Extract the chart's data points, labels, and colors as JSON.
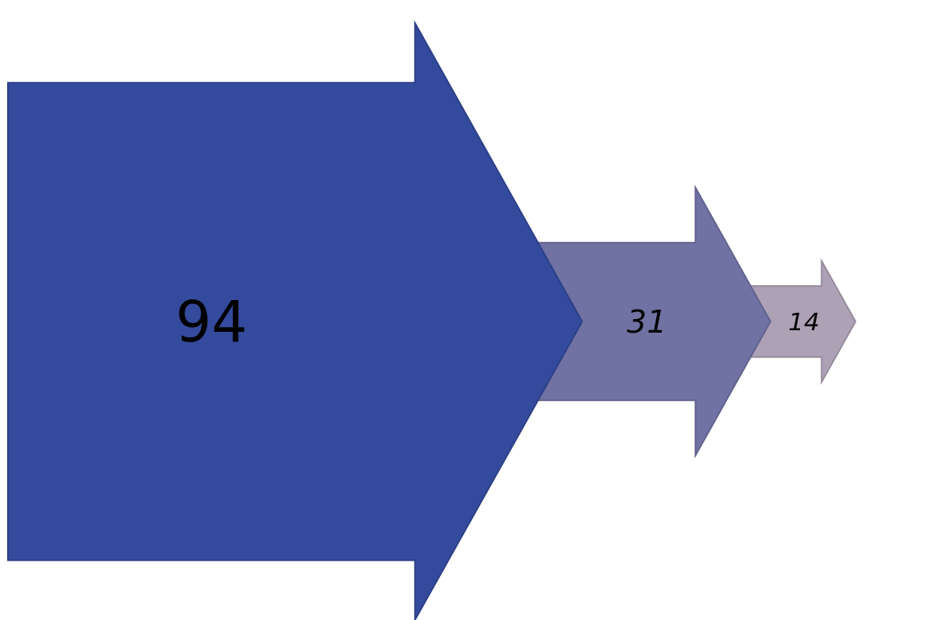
{
  "chart_data": {
    "type": "other",
    "values": [
      94,
      31,
      14
    ],
    "colors": [
      "#344a9c",
      "#7072a3",
      "#ada1b5"
    ],
    "data_labels": true
  }
}
